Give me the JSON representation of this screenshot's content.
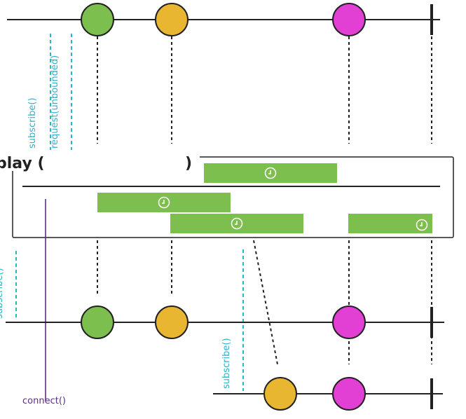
{
  "operator": {
    "title_prefix": "play (",
    "title_suffix": ")"
  },
  "labels": {
    "subscribe": "subscribe()",
    "request": "request(unbounded)",
    "connect": "connect()"
  },
  "colors": {
    "green": "#7cbf4e",
    "yellow": "#e8b631",
    "magenta": "#e23fd4",
    "cyan": "#2ab5c9",
    "purple": "#5b2d8e",
    "line": "#222222",
    "box_green": "#7cbf4e"
  },
  "icons": {
    "window_timer": "clock-icon"
  },
  "marbles": {
    "source": [
      "green",
      "yellow",
      "magenta"
    ],
    "subscriber_1": [
      "green",
      "yellow",
      "magenta"
    ],
    "subscriber_2": [
      "yellow",
      "magenta"
    ]
  }
}
